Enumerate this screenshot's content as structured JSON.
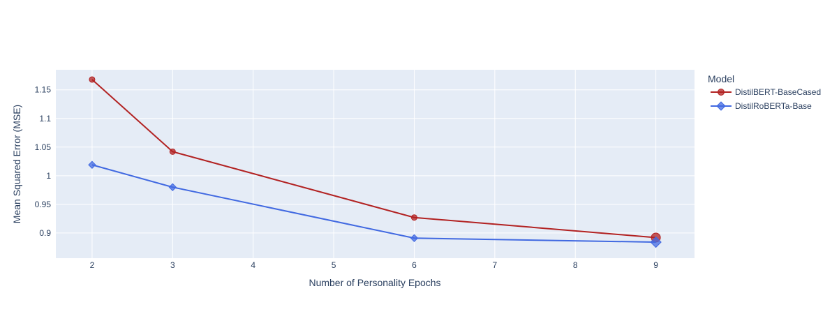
{
  "chart_data": {
    "type": "line",
    "xlabel": "Number of Personality Epochs",
    "ylabel": "Mean Squared Error (MSE)",
    "xlim": [
      1.55,
      9.48
    ],
    "ylim": [
      0.856,
      1.185
    ],
    "xticks": [
      2,
      3,
      4,
      5,
      6,
      7,
      8,
      9
    ],
    "yticks": [
      0.9,
      0.95,
      1,
      1.05,
      1.1,
      1.15
    ],
    "ytick_labels": [
      "0.9",
      "0.95",
      "1",
      "1.05",
      "1.1",
      "1.15"
    ],
    "grid": true,
    "legend": {
      "title": "Model",
      "placement": "right"
    },
    "series": [
      {
        "name": "DistilBERT-BaseCased",
        "color": "#b22222",
        "marker": "circle",
        "x": [
          2,
          3,
          6,
          9
        ],
        "y": [
          1.168,
          1.042,
          0.927,
          0.892
        ]
      },
      {
        "name": "DistilRoBERTa-Base",
        "color": "#4169e1",
        "marker": "diamond",
        "x": [
          2,
          3,
          6,
          9
        ],
        "y": [
          1.019,
          0.98,
          0.891,
          0.884
        ]
      }
    ]
  }
}
